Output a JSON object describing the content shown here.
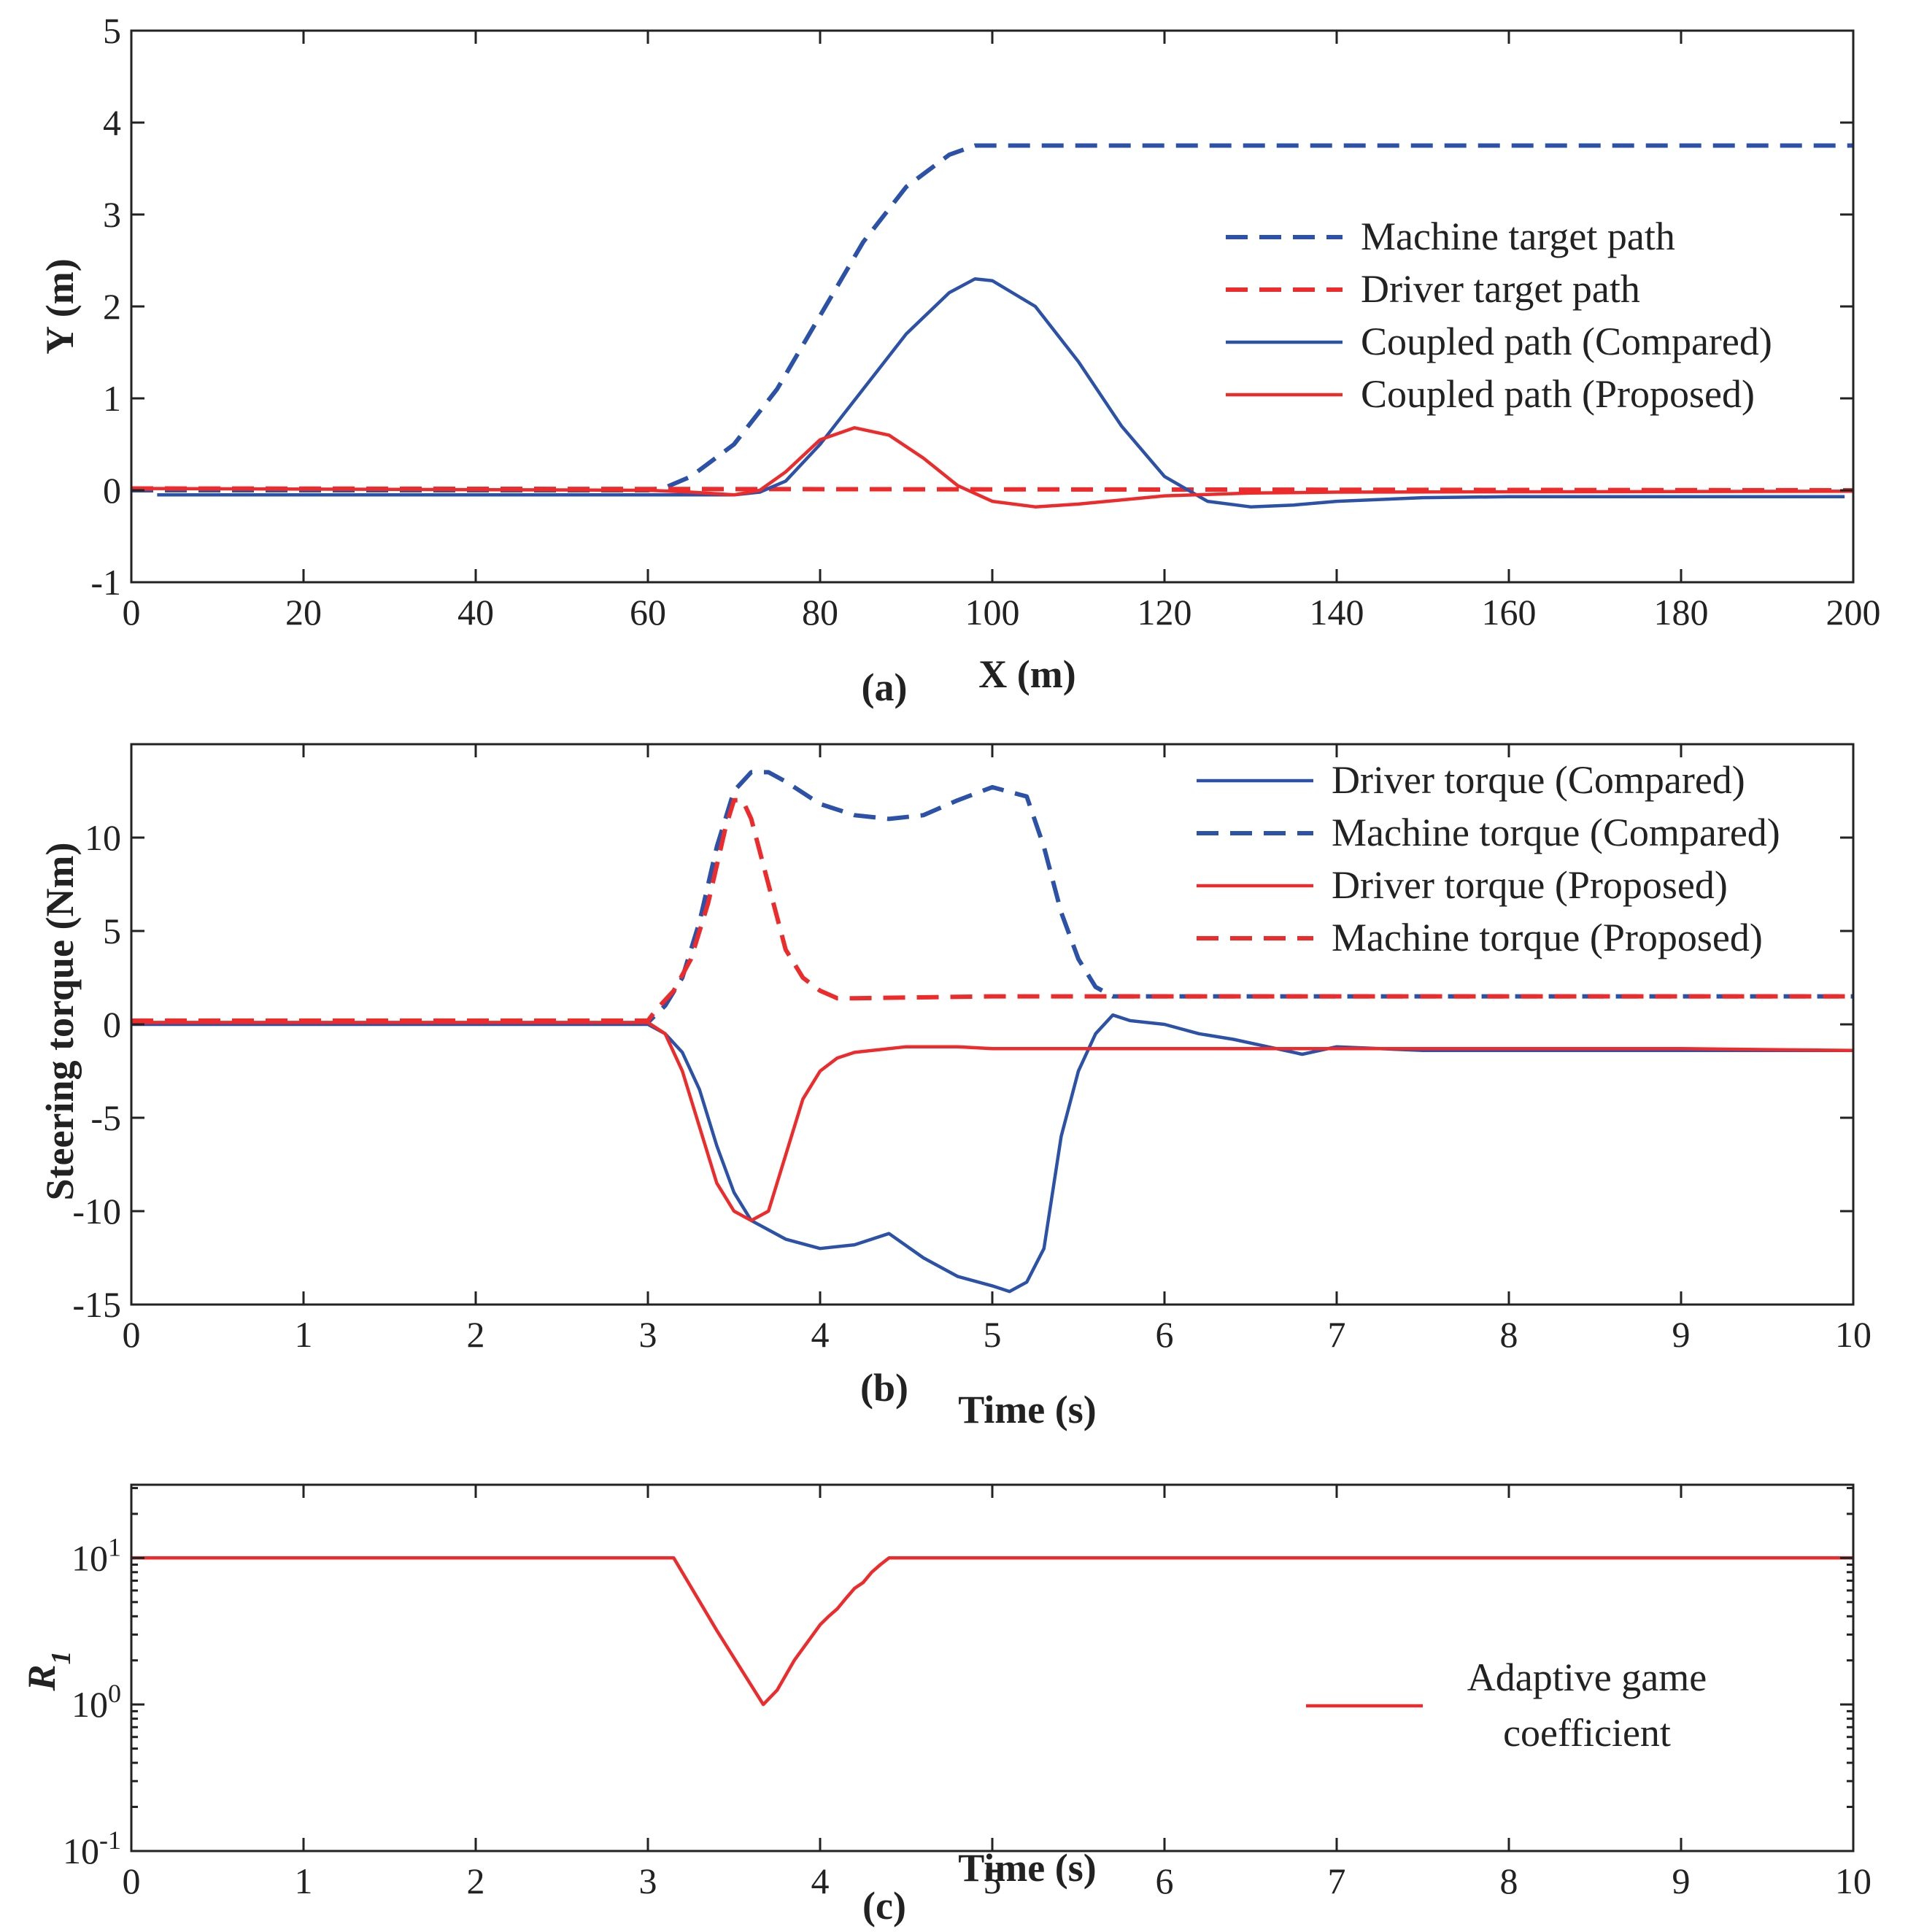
{
  "colors": {
    "blue": "#2b52a8",
    "red": "#ee2a2a",
    "axis": "#222222"
  },
  "chart_data": [
    {
      "id": "a",
      "type": "line",
      "panel_label": "(a)",
      "xlabel": "X (m)",
      "ylabel": "Y (m)",
      "xlim": [
        0,
        200
      ],
      "ylim": [
        -1,
        5
      ],
      "yscale": "linear",
      "xticks": [
        0,
        20,
        40,
        60,
        80,
        100,
        120,
        140,
        160,
        180,
        200
      ],
      "xtick_labels": [
        "0",
        "20",
        "40",
        "60",
        "80",
        "100",
        "120",
        "140",
        "160",
        "180",
        "200"
      ],
      "yticks": [
        -1,
        0,
        1,
        2,
        3,
        4,
        5
      ],
      "ytick_labels": [
        "-1",
        "0",
        "1",
        "2",
        "3",
        "4",
        "5"
      ],
      "legend_position": "right",
      "series": [
        {
          "name": "Machine target path",
          "color": "blue",
          "dash": true,
          "x": [
            0,
            60,
            62,
            65,
            70,
            75,
            80,
            85,
            90,
            95,
            98,
            100,
            120,
            160,
            200
          ],
          "y": [
            0,
            0,
            0.03,
            0.15,
            0.5,
            1.1,
            1.9,
            2.7,
            3.3,
            3.65,
            3.75,
            3.75,
            3.75,
            3.75,
            3.75
          ]
        },
        {
          "name": "Driver target path",
          "color": "red",
          "dash": true,
          "x": [
            0,
            100,
            200
          ],
          "y": [
            0.02,
            0.01,
            0.0
          ]
        },
        {
          "name": "Coupled path (Compared)",
          "color": "blue",
          "dash": false,
          "x": [
            3,
            60,
            70,
            73,
            76,
            80,
            85,
            90,
            95,
            98,
            100,
            105,
            110,
            115,
            120,
            125,
            130,
            135,
            140,
            150,
            160,
            180,
            199
          ],
          "y": [
            -0.05,
            -0.05,
            -0.05,
            -0.02,
            0.1,
            0.5,
            1.1,
            1.7,
            2.15,
            2.3,
            2.28,
            2.0,
            1.4,
            0.7,
            0.15,
            -0.12,
            -0.18,
            -0.16,
            -0.12,
            -0.08,
            -0.07,
            -0.07,
            -0.07
          ]
        },
        {
          "name": "Coupled path (Proposed)",
          "color": "red",
          "dash": false,
          "x": [
            0,
            60,
            65,
            70,
            73,
            76,
            80,
            84,
            88,
            92,
            96,
            100,
            105,
            110,
            120,
            130,
            140,
            200
          ],
          "y": [
            0.02,
            0.0,
            -0.02,
            -0.05,
            0.0,
            0.2,
            0.55,
            0.68,
            0.6,
            0.35,
            0.05,
            -0.12,
            -0.18,
            -0.15,
            -0.06,
            -0.03,
            -0.02,
            -0.01
          ]
        }
      ]
    },
    {
      "id": "b",
      "type": "line",
      "panel_label": "(b)",
      "xlabel": "Time (s)",
      "ylabel": "Steering torque (Nm)",
      "xlim": [
        0,
        10
      ],
      "ylim": [
        -15,
        15
      ],
      "yscale": "linear",
      "xticks": [
        0,
        1,
        2,
        3,
        4,
        5,
        6,
        7,
        8,
        9,
        10
      ],
      "xtick_labels": [
        "0",
        "1",
        "2",
        "3",
        "4",
        "5",
        "6",
        "7",
        "8",
        "9",
        "10"
      ],
      "yticks": [
        -15,
        -10,
        -5,
        0,
        5,
        10
      ],
      "ytick_labels": [
        "-15",
        "-10",
        "-5",
        "0",
        "5",
        "10"
      ],
      "legend_position": "top-right",
      "series": [
        {
          "name": "Driver torque (Compared)",
          "color": "blue",
          "dash": false,
          "x": [
            0,
            3.0,
            3.1,
            3.2,
            3.3,
            3.4,
            3.5,
            3.6,
            3.7,
            3.8,
            4.0,
            4.2,
            4.4,
            4.6,
            4.8,
            5.0,
            5.1,
            5.2,
            5.3,
            5.4,
            5.5,
            5.6,
            5.7,
            5.8,
            6.0,
            6.2,
            6.4,
            6.6,
            6.8,
            7.0,
            7.5,
            8.0,
            9.0,
            10.0
          ],
          "y": [
            0,
            0,
            -0.5,
            -1.5,
            -3.5,
            -6.5,
            -9,
            -10.5,
            -11,
            -11.5,
            -12,
            -11.8,
            -11.2,
            -12.5,
            -13.5,
            -14,
            -14.3,
            -13.8,
            -12,
            -6,
            -2.5,
            -0.5,
            0.5,
            0.2,
            0,
            -0.5,
            -0.8,
            -1.2,
            -1.6,
            -1.2,
            -1.4,
            -1.4,
            -1.4,
            -1.4
          ]
        },
        {
          "name": "Machine torque (Compared)",
          "color": "blue",
          "dash": true,
          "x": [
            0,
            3.0,
            3.1,
            3.2,
            3.3,
            3.4,
            3.5,
            3.6,
            3.7,
            3.8,
            4.0,
            4.2,
            4.4,
            4.6,
            4.8,
            5.0,
            5.2,
            5.3,
            5.4,
            5.5,
            5.6,
            5.7,
            6.0,
            7.0,
            8.0,
            10.0
          ],
          "y": [
            0.1,
            0.1,
            1.0,
            2.5,
            5.5,
            9.5,
            12.5,
            13.5,
            13.5,
            13.0,
            11.8,
            11.2,
            11.0,
            11.2,
            12.0,
            12.7,
            12.2,
            9.5,
            6.0,
            3.5,
            2.0,
            1.5,
            1.5,
            1.5,
            1.5,
            1.5
          ]
        },
        {
          "name": "Driver torque (Proposed)",
          "color": "red",
          "dash": false,
          "x": [
            0,
            3.0,
            3.1,
            3.2,
            3.3,
            3.4,
            3.5,
            3.6,
            3.7,
            3.8,
            3.9,
            4.0,
            4.1,
            4.2,
            4.5,
            4.8,
            5.0,
            5.5,
            6.0,
            7.0,
            8.0,
            9.0,
            10.0
          ],
          "y": [
            0.1,
            0.1,
            -0.5,
            -2.5,
            -5.5,
            -8.5,
            -10,
            -10.5,
            -10,
            -7,
            -4,
            -2.5,
            -1.8,
            -1.5,
            -1.2,
            -1.2,
            -1.3,
            -1.3,
            -1.3,
            -1.3,
            -1.3,
            -1.3,
            -1.4
          ]
        },
        {
          "name": "Machine torque (Proposed)",
          "color": "red",
          "dash": true,
          "x": [
            0,
            3.0,
            3.05,
            3.15,
            3.25,
            3.35,
            3.45,
            3.5,
            3.55,
            3.6,
            3.7,
            3.8,
            3.9,
            4.0,
            4.1,
            4.2,
            5.0,
            6.0,
            7.0,
            8.0,
            10.0
          ],
          "y": [
            0.2,
            0.2,
            0.8,
            1.8,
            3.5,
            6.5,
            10.5,
            12.0,
            12.0,
            11.0,
            7.5,
            4.0,
            2.5,
            1.8,
            1.4,
            1.4,
            1.5,
            1.5,
            1.5,
            1.5,
            1.5
          ]
        }
      ]
    },
    {
      "id": "c",
      "type": "line",
      "panel_label": "(c)",
      "xlabel": "Time (s)",
      "ylabel": "R",
      "ylabel_sub": "1",
      "xlim": [
        0,
        10
      ],
      "ylim": [
        0.1,
        31.6
      ],
      "yscale": "log",
      "xticks": [
        0,
        1,
        2,
        3,
        4,
        5,
        6,
        7,
        8,
        9,
        10
      ],
      "xtick_labels": [
        "0",
        "1",
        "2",
        "3",
        "4",
        "5",
        "6",
        "7",
        "8",
        "9",
        "10"
      ],
      "yticks": [
        0.1,
        1,
        10
      ],
      "ytick_bases": [
        "10",
        "10",
        "10"
      ],
      "ytick_exps": [
        "-1",
        "0",
        "1"
      ],
      "legend_position": "bottom-right",
      "series": [
        {
          "name": "Adaptive game coefficient",
          "name_lines": [
            "Adaptive game",
            "coefficient"
          ],
          "color": "red",
          "dash": false,
          "x": [
            0,
            3.15,
            3.4,
            3.67,
            3.75,
            3.85,
            4.0,
            4.05,
            4.1,
            4.15,
            4.2,
            4.25,
            4.3,
            4.35,
            4.4,
            10.0
          ],
          "y": [
            10,
            10,
            3.2,
            1.0,
            1.25,
            2.0,
            3.5,
            4.0,
            4.5,
            5.3,
            6.2,
            6.8,
            8.0,
            9.0,
            10,
            10
          ]
        }
      ]
    }
  ]
}
